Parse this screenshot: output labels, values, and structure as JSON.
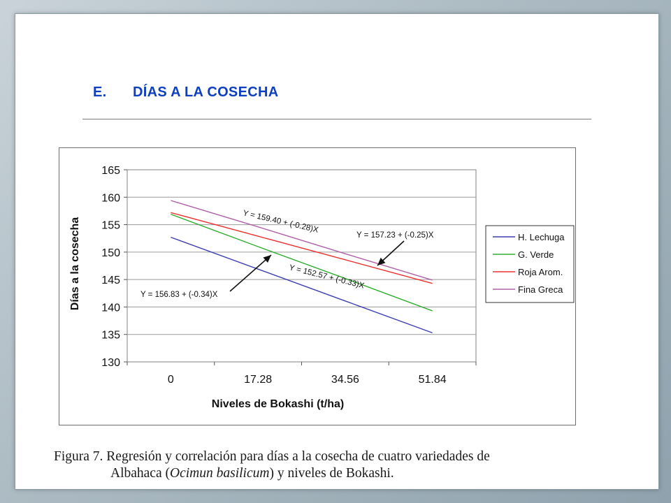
{
  "heading": {
    "number": "E.",
    "title": "DÍAS A LA COSECHA"
  },
  "colors": {
    "heading": "#0d3fbf",
    "H. Lechuga": "#3b3fb0",
    "G. Verde": "#2eae2e",
    "Roja Arom.": "#f03030",
    "Fina Greca": "#b060a8"
  },
  "chart_data": {
    "type": "line",
    "xlabel": "Niveles de Bokashi (t/ha)",
    "ylabel": "Días a la cosecha",
    "categories": [
      "0",
      "17.28",
      "34.56",
      "51.84"
    ],
    "ylim": [
      130,
      165
    ],
    "yticks": [
      "130",
      "135",
      "140",
      "145",
      "150",
      "155",
      "160",
      "165"
    ],
    "grid": true,
    "legend": "right",
    "series": [
      {
        "name": "H. Lechuga",
        "values": [
          152.7,
          146.9,
          141.1,
          135.3
        ],
        "color": "#3b3fb0"
      },
      {
        "name": "G. Verde",
        "values": [
          156.9,
          151.0,
          145.2,
          139.3
        ],
        "color": "#2eae2e"
      },
      {
        "name": "Roja Arom.",
        "values": [
          157.2,
          152.9,
          148.6,
          144.3
        ],
        "color": "#f03030"
      },
      {
        "name": "Fina Greca",
        "values": [
          159.4,
          154.6,
          149.7,
          144.9
        ],
        "color": "#b060a8"
      }
    ],
    "annotations": [
      {
        "text": "Y = 159.40 + (-0.28)X"
      },
      {
        "text": "Y = 157.23 + (-0.25)X"
      },
      {
        "text": "Y = 152.57 + (-0.33)X"
      },
      {
        "text": "Y = 156.83 + (-0.34)X"
      }
    ]
  },
  "caption": {
    "line1_prefix": "Figura 7. Regresión y correlación para días a la cosecha de cuatro variedades de",
    "line2_a": "Albahaca (",
    "line2_italic": "Ocimun basilicum",
    "line2_b": ") y niveles de Bokashi."
  }
}
